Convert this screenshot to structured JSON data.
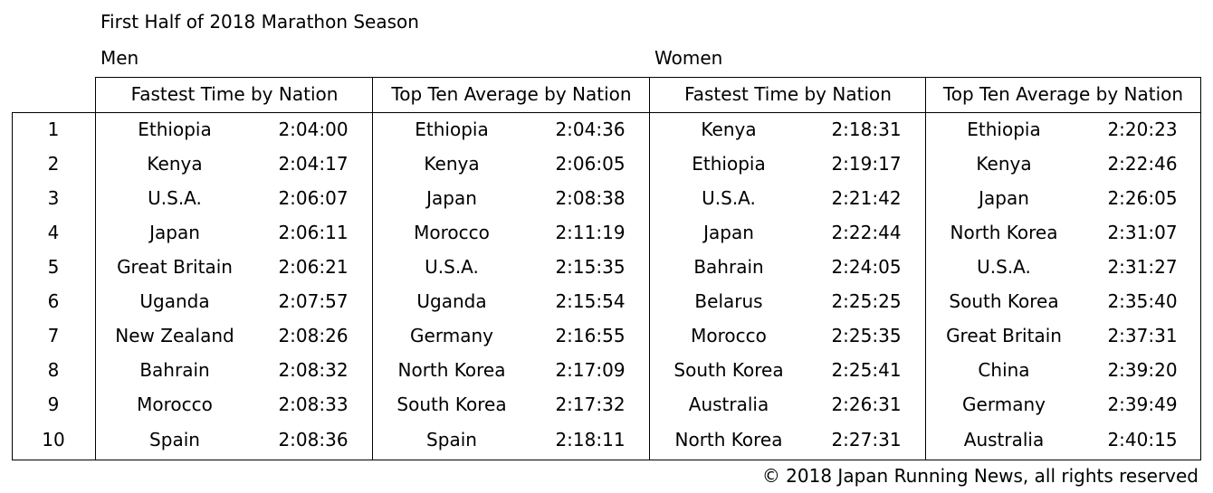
{
  "title": "First Half of 2018 Marathon Season",
  "men_label": "Men",
  "women_label": "Women",
  "headers": {
    "men_fastest": "Fastest Time by Nation",
    "men_topten": "Top Ten Average by Nation",
    "women_fastest": "Fastest Time by Nation",
    "women_topten": "Top Ten Average by Nation"
  },
  "ranks": [
    "1",
    "2",
    "3",
    "4",
    "5",
    "6",
    "7",
    "8",
    "9",
    "10"
  ],
  "tables": {
    "men_fastest": [
      {
        "nation": "Ethiopia",
        "time": "2:04:00"
      },
      {
        "nation": "Kenya",
        "time": "2:04:17"
      },
      {
        "nation": "U.S.A.",
        "time": "2:06:07"
      },
      {
        "nation": "Japan",
        "time": "2:06:11"
      },
      {
        "nation": "Great Britain",
        "time": "2:06:21"
      },
      {
        "nation": "Uganda",
        "time": "2:07:57"
      },
      {
        "nation": "New Zealand",
        "time": "2:08:26"
      },
      {
        "nation": "Bahrain",
        "time": "2:08:32"
      },
      {
        "nation": "Morocco",
        "time": "2:08:33"
      },
      {
        "nation": "Spain",
        "time": "2:08:36"
      }
    ],
    "men_topten": [
      {
        "nation": "Ethiopia",
        "time": "2:04:36"
      },
      {
        "nation": "Kenya",
        "time": "2:06:05"
      },
      {
        "nation": "Japan",
        "time": "2:08:38"
      },
      {
        "nation": "Morocco",
        "time": "2:11:19"
      },
      {
        "nation": "U.S.A.",
        "time": "2:15:35"
      },
      {
        "nation": "Uganda",
        "time": "2:15:54"
      },
      {
        "nation": "Germany",
        "time": "2:16:55"
      },
      {
        "nation": "North Korea",
        "time": "2:17:09"
      },
      {
        "nation": "South Korea",
        "time": "2:17:32"
      },
      {
        "nation": "Spain",
        "time": "2:18:11"
      }
    ],
    "women_fastest": [
      {
        "nation": "Kenya",
        "time": "2:18:31"
      },
      {
        "nation": "Ethiopia",
        "time": "2:19:17"
      },
      {
        "nation": "U.S.A.",
        "time": "2:21:42"
      },
      {
        "nation": "Japan",
        "time": "2:22:44"
      },
      {
        "nation": "Bahrain",
        "time": "2:24:05"
      },
      {
        "nation": "Belarus",
        "time": "2:25:25"
      },
      {
        "nation": "Morocco",
        "time": "2:25:35"
      },
      {
        "nation": "South Korea",
        "time": "2:25:41"
      },
      {
        "nation": "Australia",
        "time": "2:26:31"
      },
      {
        "nation": "North Korea",
        "time": "2:27:31"
      }
    ],
    "women_topten": [
      {
        "nation": "Ethiopia",
        "time": "2:20:23"
      },
      {
        "nation": "Kenya",
        "time": "2:22:46"
      },
      {
        "nation": "Japan",
        "time": "2:26:05"
      },
      {
        "nation": "North Korea",
        "time": "2:31:07"
      },
      {
        "nation": "U.S.A.",
        "time": "2:31:27"
      },
      {
        "nation": "South Korea",
        "time": "2:35:40"
      },
      {
        "nation": "Great Britain",
        "time": "2:37:31"
      },
      {
        "nation": "China",
        "time": "2:39:20"
      },
      {
        "nation": "Germany",
        "time": "2:39:49"
      },
      {
        "nation": "Australia",
        "time": "2:40:15"
      }
    ]
  },
  "copyright": "© 2018 Japan Running News, all rights reserved"
}
